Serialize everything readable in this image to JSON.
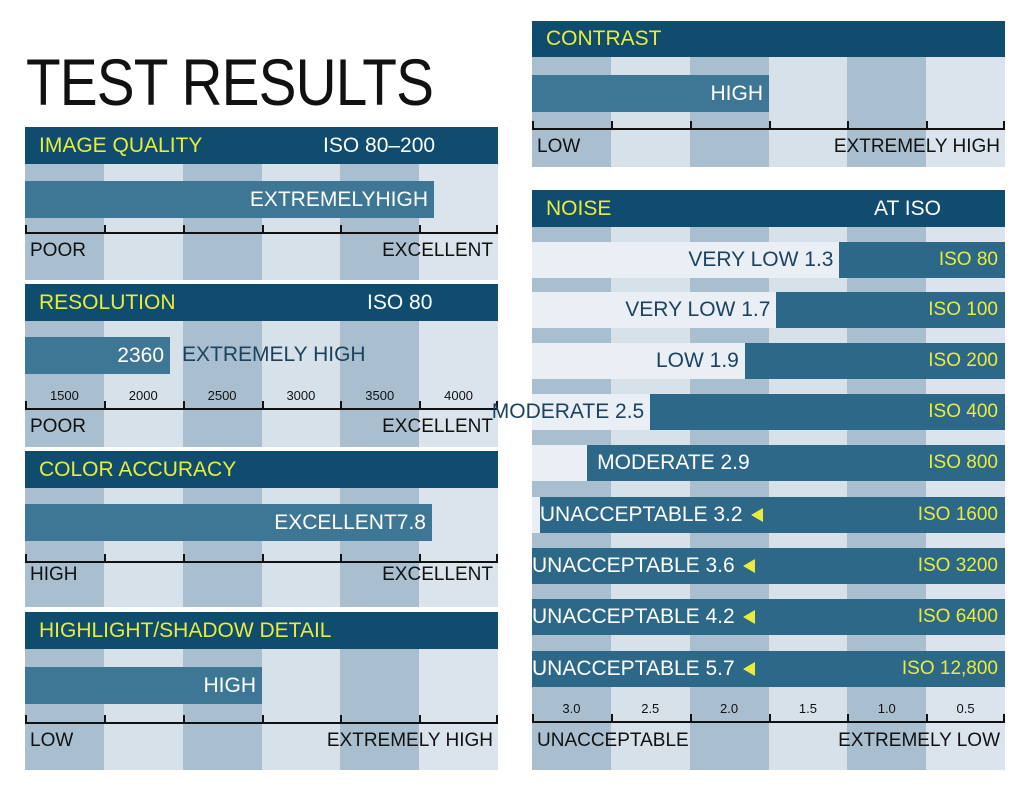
{
  "title": "TEST RESULTS",
  "colors": {
    "header": "#0f4c6e",
    "bar": "#3d7795",
    "accent": "#e8ec3c",
    "stripe_dark": "#a9bfcf",
    "stripe_light": "#d7e1e9"
  },
  "chart_data": [
    {
      "type": "bar",
      "title": "IMAGE QUALITY",
      "note": "ISO 80–200",
      "value_label": "EXTREMELYHIGH",
      "value_fraction": 0.865,
      "scale_low": "POOR",
      "scale_high": "EXCELLENT"
    },
    {
      "type": "bar",
      "title": "RESOLUTION",
      "note": "ISO 80",
      "value": 2360,
      "value_text": "2360",
      "value_label": "EXTREMELY HIGH",
      "ticks": [
        "1500",
        "2000",
        "2500",
        "3000",
        "3500",
        "4000"
      ],
      "scale_low": "POOR",
      "scale_high": "EXCELLENT"
    },
    {
      "type": "bar",
      "title": "COLOR ACCURACY",
      "value_label": "EXCELLENT7.8",
      "value_fraction": 0.86,
      "scale_low": "HIGH",
      "scale_high": "EXCELLENT"
    },
    {
      "type": "bar",
      "title": "HIGHLIGHT/SHADOW DETAIL",
      "value_label": "HIGH",
      "value_fraction": 0.5,
      "scale_low": "LOW",
      "scale_high": "EXTREMELY HIGH"
    },
    {
      "type": "bar",
      "title": "CONTRAST",
      "value_label": "HIGH",
      "value_fraction": 0.5,
      "scale_low": "LOW",
      "scale_high": "EXTREMELY HIGH"
    },
    {
      "type": "bar",
      "title": "NOISE",
      "note": "AT ISO",
      "categories": [
        "ISO 80",
        "ISO 100",
        "ISO 200",
        "ISO 400",
        "ISO 800",
        "ISO 1600",
        "ISO 3200",
        "ISO 6400",
        "ISO 12,800"
      ],
      "values": [
        1.3,
        1.7,
        1.9,
        2.5,
        2.9,
        3.2,
        3.6,
        4.2,
        5.7
      ],
      "labels": [
        "VERY LOW 1.3",
        "VERY LOW 1.7",
        "LOW 1.9",
        "MODERATE 2.5",
        "MODERATE 2.9",
        "UNACCEPTABLE 3.2",
        "UNACCEPTABLE 3.6",
        "UNACCEPTABLE 4.2",
        "UNACCEPTABLE 5.7"
      ],
      "ticks": [
        "3.0",
        "2.5",
        "2.0",
        "1.5",
        "1.0",
        "0.5"
      ],
      "tick_values": [
        3.0,
        2.5,
        2.0,
        1.5,
        1.0,
        0.5
      ],
      "scale_low": "UNACCEPTABLE",
      "scale_high": "EXTREMELY LOW"
    }
  ]
}
